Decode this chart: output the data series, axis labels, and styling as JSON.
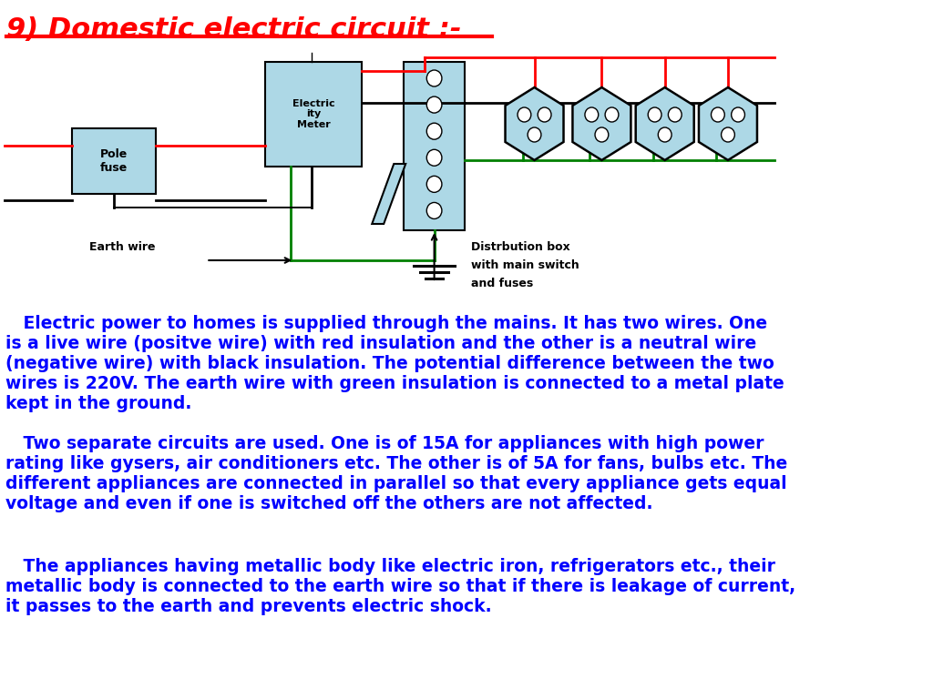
{
  "title": "9) Domestic electric circuit :-",
  "title_color": "#FF0000",
  "bg_color": "#FFFFFF",
  "text_para1": "   Electric power to homes is supplied through the mains. It has two wires. One\nis a live wire (positve wire) with red insulation and the other is a neutral wire\n(negative wire) with black insulation. The potential difference between the two\nwires is 220V. The earth wire with green insulation is connected to a metal plate\nkept in the ground.",
  "text_para2": "   Two separate circuits are used. One is of 15A for appliances with high power\nrating like gysers, air conditioners etc. The other is of 5A for fans, bulbs etc. The\ndifferent appliances are connected in parallel so that every appliance gets equal\nvoltage and even if one is switched off the others are not affected.",
  "text_para3": "   The appliances having metallic body like electric iron, refrigerators etc., their\nmetallic body is connected to the earth wire so that if there is leakage of current,\nit passes to the earth and prevents electric shock.",
  "text_color": "#0000FF",
  "box_fill": "#ADD8E6",
  "box_edge": "#000000",
  "wire_red": "#FF0000",
  "wire_black": "#000000",
  "wire_green": "#008000"
}
